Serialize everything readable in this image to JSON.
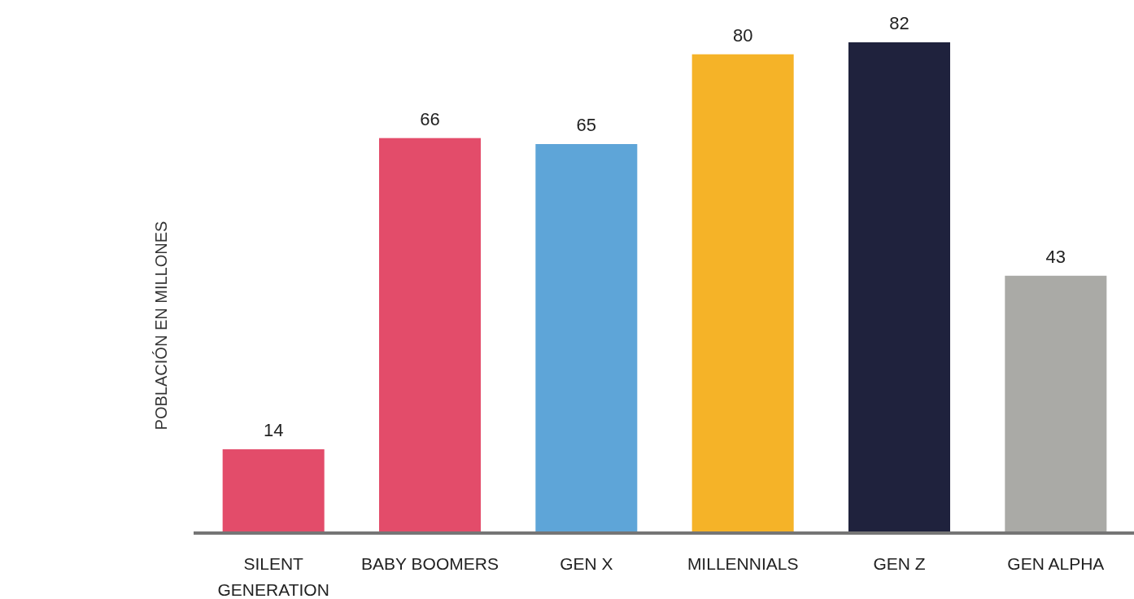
{
  "chart_data": {
    "type": "bar",
    "ylabel": "POBLACIÓN EN MILLONES",
    "categories": [
      "SILENT GENERATION",
      "BABY BOOMERS",
      "GEN X",
      "MILLENNIALS",
      "GEN Z",
      "GEN ALPHA"
    ],
    "values": [
      14,
      66,
      65,
      80,
      82,
      43
    ],
    "colors": [
      "#e34c6a",
      "#e34c6a",
      "#5ea5d8",
      "#f5b328",
      "#1f223d",
      "#aaaaa6"
    ],
    "data_labels": true
  }
}
